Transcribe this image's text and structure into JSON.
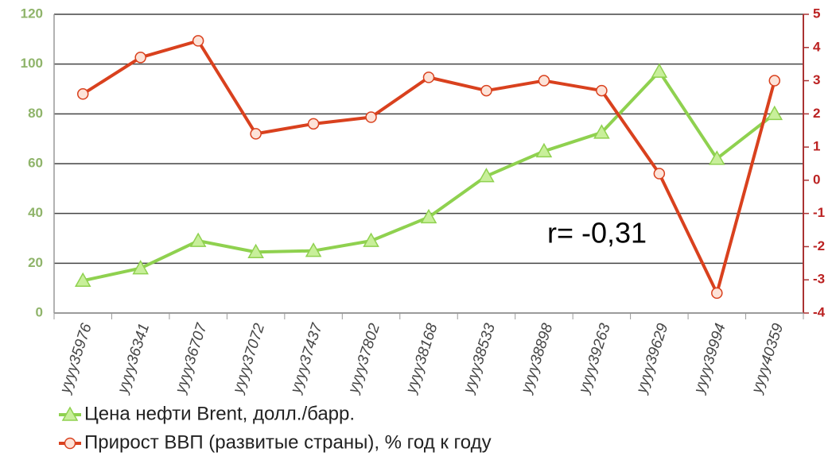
{
  "chart_data": {
    "type": "line",
    "categories": [
      "yyyy35976",
      "yyyy36341",
      "yyyy36707",
      "yyyy37072",
      "yyyy37437",
      "yyyy37802",
      "yyyy38168",
      "yyyy38533",
      "yyyy38898",
      "yyyy39263",
      "yyyy39629",
      "yyyy39994",
      "yyyy40359"
    ],
    "series": [
      {
        "name": "Цена нефти Brent, долл./барр.",
        "color": "#8fd14f",
        "marker": "triangle",
        "values": [
          13,
          18,
          29,
          24.5,
          25,
          29,
          38.5,
          55,
          65,
          72.5,
          97,
          62,
          80
        ]
      },
      {
        "name": "Прирост ВВП (развитые страны), % год к году",
        "color": "#d9411e",
        "marker": "circle",
        "axis": "y2",
        "values": [
          2.6,
          3.7,
          4.2,
          1.4,
          1.7,
          1.9,
          3.1,
          2.7,
          3.0,
          2.7,
          0.2,
          -3.4,
          3.0
        ]
      }
    ],
    "ylim": [
      0,
      120
    ],
    "yticks": [
      0,
      20,
      40,
      60,
      80,
      100,
      120
    ],
    "y2lim": [
      -4,
      5
    ],
    "y2ticks": [
      -4,
      -3,
      -2,
      -1,
      0,
      1,
      2,
      3,
      4,
      5
    ],
    "grid": true,
    "annotations": [
      "r= -0,31"
    ]
  }
}
